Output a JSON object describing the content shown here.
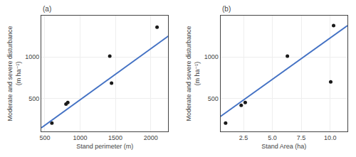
{
  "chart_data": [
    {
      "type": "scatter",
      "title": "(a)",
      "xlabel": "Stand perimeter (m)",
      "ylabel": "Moderate and severe disturbance\n(m ha⁻¹)",
      "series": [
        {
          "type": "scatter",
          "color": "#1a1a1a",
          "x": [
            600,
            800,
            825,
            1420,
            1445,
            2090
          ],
          "values": [
            200,
            430,
            450,
            1010,
            685,
            1360
          ]
        },
        {
          "type": "line",
          "color": "#4472c4",
          "x": [
            450,
            2250
          ],
          "values": [
            142.65,
            1253.25
          ]
        }
      ],
      "xlim": [
        450,
        2250
      ],
      "ylim": [
        100,
        1500
      ],
      "xticks": [
        500,
        1000,
        1500,
        2000
      ],
      "yticks": [
        500,
        1000
      ],
      "grid": true
    },
    {
      "type": "scatter",
      "title": "(b)",
      "xlabel": "Stand Area (ha)",
      "ylabel": "Moderate and severe disturbance\n(m ha⁻¹)",
      "series": [
        {
          "type": "scatter",
          "color": "#1a1a1a",
          "x": [
            0.95,
            2.3,
            2.65,
            6.3,
            10.05,
            10.3
          ],
          "values": [
            200,
            415,
            450,
            1010,
            700,
            1380
          ]
        },
        {
          "type": "line",
          "color": "#4472c4",
          "x": [
            0.5,
            11.5
          ],
          "values": [
            280,
            1380
          ]
        }
      ],
      "xlim": [
        0.5,
        11.5
      ],
      "ylim": [
        100,
        1500
      ],
      "xticks": [
        2.5,
        {
          "value": 5.0,
          "label": "5.0"
        },
        7.5,
        {
          "value": 10.0,
          "label": "10.0"
        }
      ],
      "yticks": [
        500,
        1000
      ],
      "grid": true
    }
  ]
}
